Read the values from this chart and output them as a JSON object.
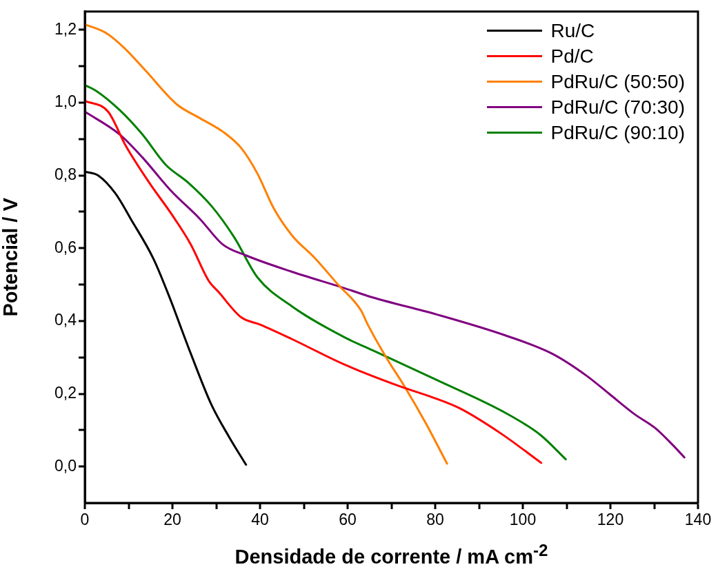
{
  "chart_data": {
    "type": "line",
    "xlabel": "Densidade de corrente / mA cm$^{-2}$",
    "ylabel": "Potencial / V",
    "xlim": [
      0,
      140
    ],
    "ylim": [
      -0.1,
      1.25
    ],
    "xticks": [
      0,
      {
        "value": 10,
        "label": null
      },
      20,
      {
        "value": 30,
        "label": null
      },
      40,
      {
        "value": 50,
        "label": null
      },
      60,
      {
        "value": 70,
        "label": null
      },
      80,
      {
        "value": 90,
        "label": null
      },
      100,
      {
        "value": 110,
        "label": null
      },
      120,
      {
        "value": 130,
        "label": null
      },
      140
    ],
    "yticks": [
      {
        "value": 0,
        "label": "0,0"
      },
      {
        "value": 0.1,
        "label": null
      },
      {
        "value": 0.2,
        "label": "0,2"
      },
      {
        "value": 0.3,
        "label": null
      },
      {
        "value": 0.4,
        "label": "0,4"
      },
      {
        "value": 0.5,
        "label": null
      },
      {
        "value": 0.6,
        "label": "0,6"
      },
      {
        "value": 0.7,
        "label": null
      },
      {
        "value": 0.8,
        "label": "0,8"
      },
      {
        "value": 0.9,
        "label": null
      },
      {
        "value": 1.0,
        "label": "1,0"
      },
      {
        "value": 1.1,
        "label": null
      },
      {
        "value": 1.2,
        "label": "1,2"
      }
    ],
    "grid": false,
    "legend": "top right",
    "marker": "none",
    "line_style": "solid",
    "series": [
      {
        "name": "Ru/C",
        "color": "#000000",
        "x": [
          0,
          3,
          7,
          10.5,
          15.7,
          19.5,
          22,
          24.2,
          28.9,
          33,
          36.8
        ],
        "values": [
          0.81,
          0.8,
          0.75,
          0.68,
          0.57,
          0.46,
          0.38,
          0.31,
          0.17,
          0.08,
          0.005
        ]
      },
      {
        "name": "Pd/C",
        "color": "#ff0000",
        "x": [
          0,
          5.3,
          9.4,
          14.7,
          20,
          24.2,
          28.3,
          30.5,
          35.7,
          40,
          47.3,
          59.3,
          72,
          79.4,
          85.6,
          95.1,
          104.2
        ],
        "values": [
          1.005,
          0.975,
          0.88,
          0.78,
          0.69,
          0.61,
          0.51,
          0.48,
          0.41,
          0.39,
          0.35,
          0.28,
          0.22,
          0.19,
          0.16,
          0.09,
          0.01
        ]
      },
      {
        "name": "PdRu/C (50:50)",
        "color": "#ff8000",
        "x": [
          0,
          5,
          9,
          13.7,
          21,
          26.3,
          31.5,
          35.7,
          39.4,
          43.1,
          47.3,
          52.5,
          57.8,
          63,
          64.6,
          68.8,
          73,
          77.8,
          82.7
        ],
        "values": [
          1.215,
          1.19,
          1.15,
          1.09,
          0.995,
          0.957,
          0.92,
          0.875,
          0.805,
          0.71,
          0.635,
          0.573,
          0.5,
          0.43,
          0.39,
          0.3,
          0.22,
          0.12,
          0.008
        ]
      },
      {
        "name": "PdRu/C (70:30)",
        "color": "#800080",
        "x": [
          0,
          7.9,
          13.1,
          19.5,
          26.3,
          31.5,
          36.8,
          47.3,
          59.3,
          65.6,
          80.3,
          96.1,
          106.7,
          114.5,
          119.7,
          125.5,
          130.2,
          134,
          136.9
        ],
        "values": [
          0.975,
          0.913,
          0.85,
          0.76,
          0.68,
          0.61,
          0.58,
          0.535,
          0.49,
          0.465,
          0.418,
          0.36,
          0.31,
          0.25,
          0.2,
          0.144,
          0.106,
          0.062,
          0.025
        ]
      },
      {
        "name": "PdRu/C (90:10)",
        "color": "#008000",
        "x": [
          0,
          2.6,
          7.9,
          13.1,
          18.4,
          23.6,
          28.9,
          34.1,
          39.4,
          47.3,
          59.3,
          65.6,
          80.3,
          96.1,
          104,
          109.8
        ],
        "values": [
          1.048,
          1.032,
          0.98,
          0.913,
          0.83,
          0.78,
          0.716,
          0.63,
          0.52,
          0.44,
          0.355,
          0.32,
          0.238,
          0.147,
          0.087,
          0.02
        ]
      }
    ]
  }
}
